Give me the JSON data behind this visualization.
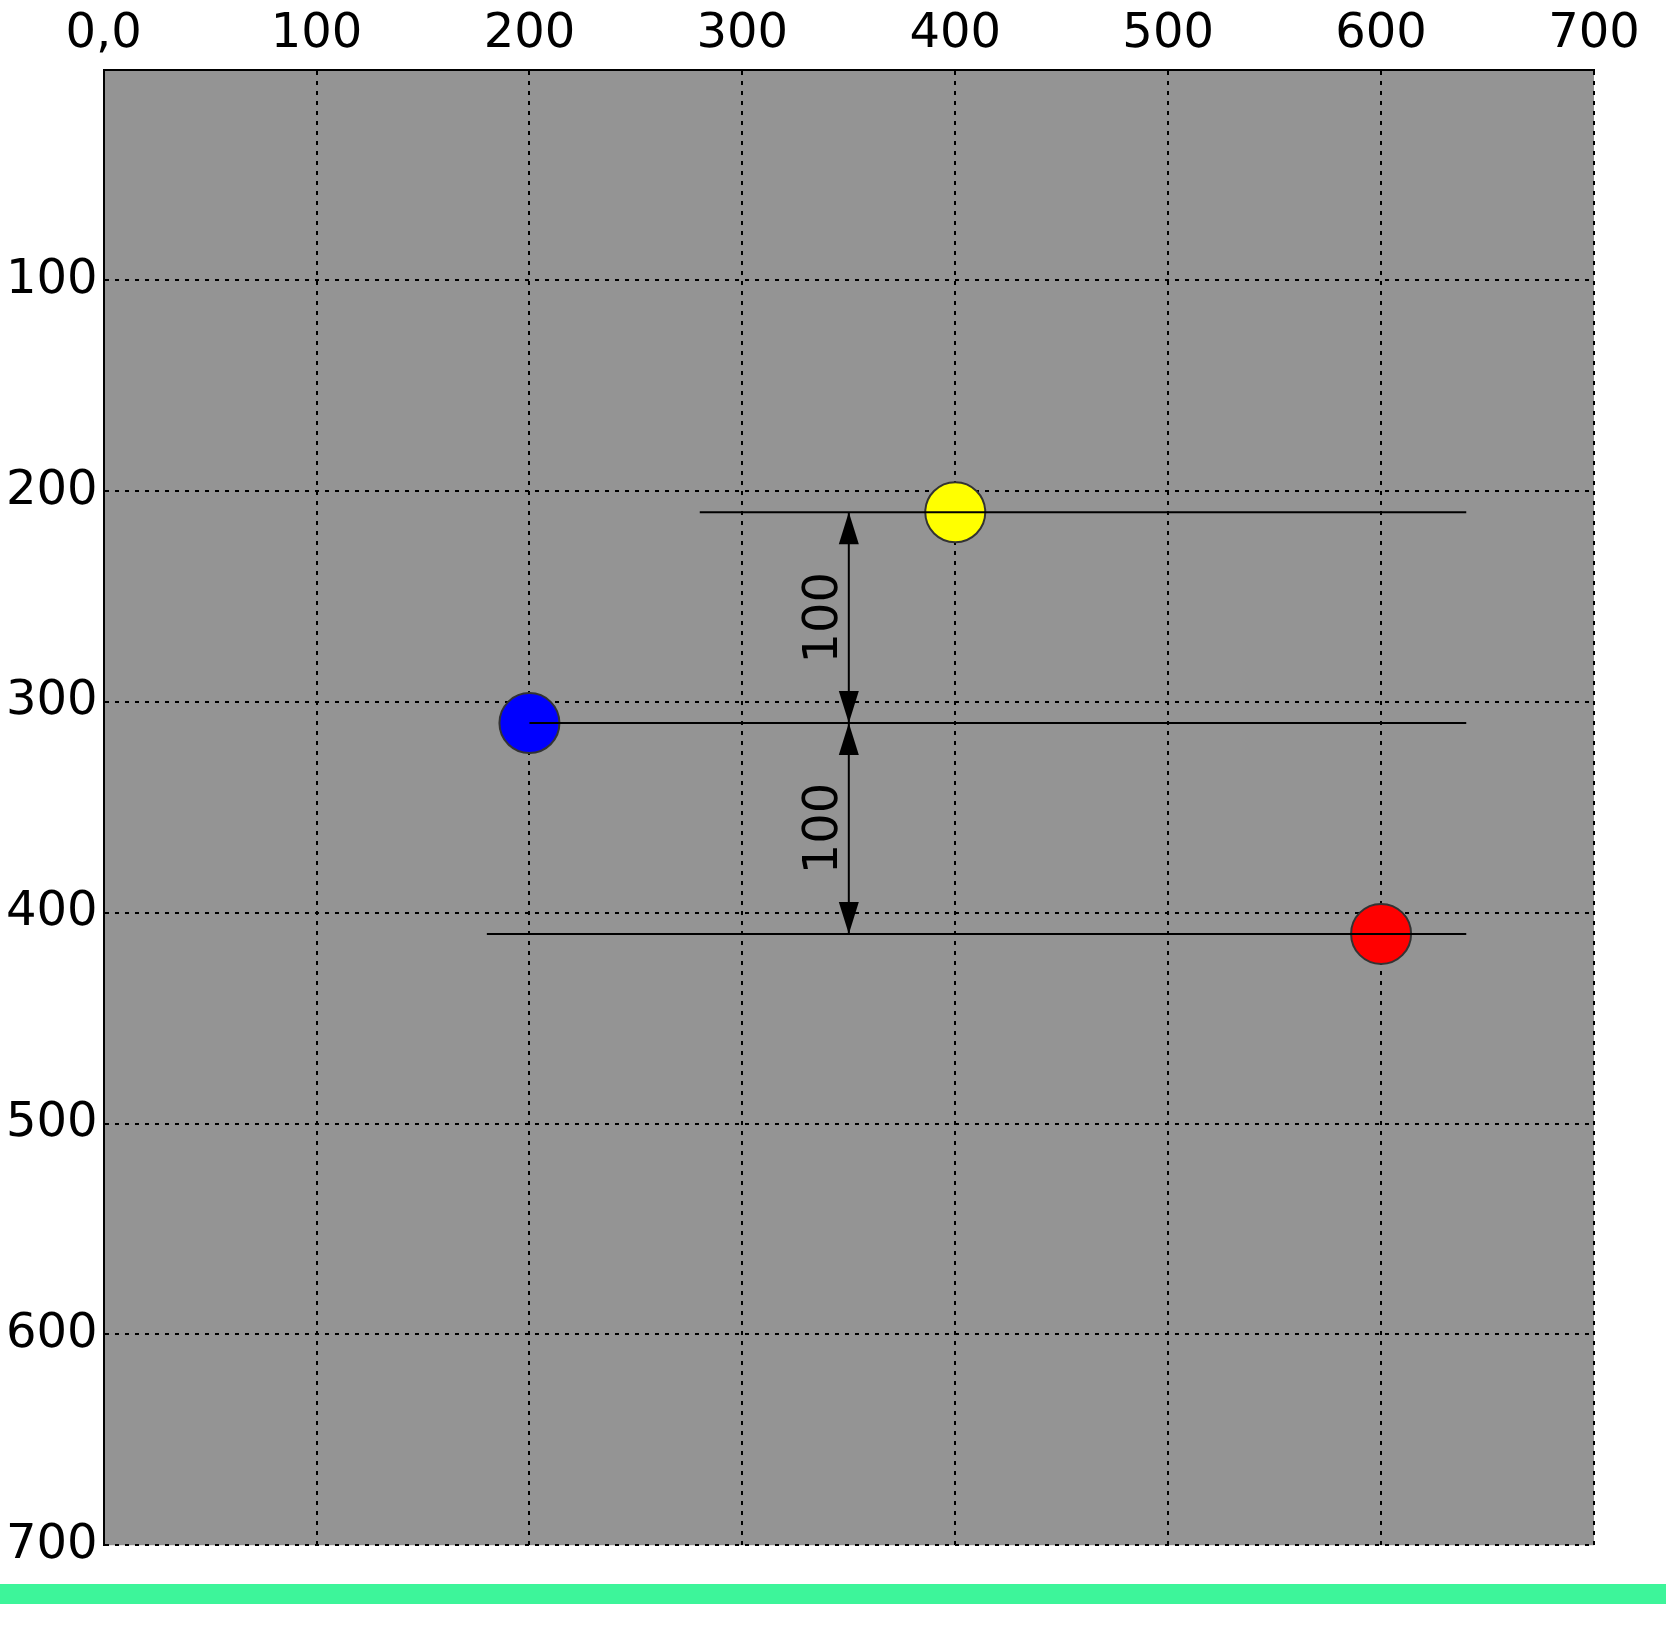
{
  "chart_data": {
    "type": "scatter",
    "xlim": [
      0,
      700
    ],
    "xticks": [
      {
        "value": 0,
        "label": "0,0"
      },
      100,
      200,
      300,
      400,
      500,
      600,
      700
    ],
    "ylim": [
      700,
      0
    ],
    "yticks": [
      {
        "value": 0,
        "label": null
      },
      100,
      200,
      300,
      400,
      500,
      600,
      700
    ],
    "grid": true,
    "marker": "circle",
    "series": [
      {
        "type": "line",
        "marker": "none",
        "color": "#000000",
        "x": [
          280,
          640
        ],
        "values": [
          210,
          210
        ]
      },
      {
        "type": "line",
        "marker": "none",
        "color": "#000000",
        "x": [
          200,
          640
        ],
        "values": [
          310,
          310
        ]
      },
      {
        "type": "line",
        "marker": "none",
        "color": "#000000",
        "x": [
          180,
          640
        ],
        "values": [
          410,
          410
        ]
      },
      {
        "color": "#ffff00",
        "x": [
          400
        ],
        "values": [
          210
        ]
      },
      {
        "color": "#0000ff",
        "x": [
          200
        ],
        "values": [
          310
        ]
      },
      {
        "color": "#ff0000",
        "x": [
          600
        ],
        "values": [
          410
        ]
      }
    ],
    "annotations": [
      {
        "text": "100",
        "x": 350,
        "y": 210
      },
      {
        "text": "100",
        "x": 350,
        "y": 410
      }
    ]
  }
}
